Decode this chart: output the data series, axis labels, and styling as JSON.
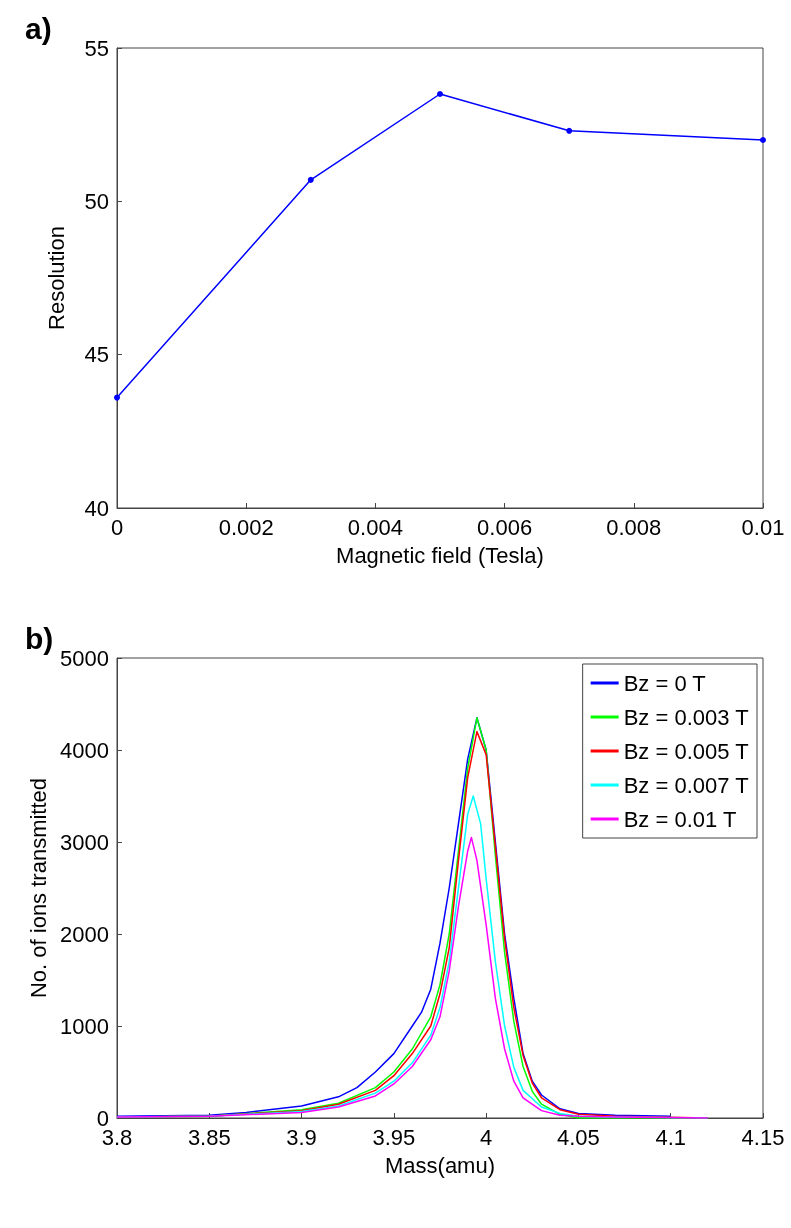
{
  "chart_data": [
    {
      "type": "line",
      "title": "a)",
      "xlabel": "Magnetic field (Tesla)",
      "ylabel": "Resolution",
      "x": [
        0,
        0.003,
        0.005,
        0.007,
        0.01
      ],
      "series": [
        {
          "color": "#0000ff",
          "values": [
            43.6,
            50.7,
            53.5,
            52.3,
            52.0
          ]
        }
      ],
      "xlim": [
        0,
        0.01
      ],
      "xticks": [
        0,
        0.002,
        0.004,
        0.006,
        0.008,
        0.01
      ],
      "ylim": [
        40,
        55
      ],
      "yticks": [
        40,
        45,
        50,
        55
      ],
      "grid": false,
      "marker": "circle",
      "line_style": "solid"
    },
    {
      "type": "line",
      "title": "b)",
      "xlabel": "Mass(amu)",
      "ylabel": "No. of ions transmitted",
      "legend": "top right",
      "grid": false,
      "marker": "none",
      "line_style": "solid",
      "xlim": [
        3.8,
        4.15
      ],
      "xticks": [
        3.8,
        3.85,
        3.9,
        3.95,
        4,
        4.05,
        4.1,
        4.15
      ],
      "ylim": [
        0,
        5000
      ],
      "yticks": [
        0,
        1000,
        2000,
        3000,
        4000,
        5000
      ],
      "series": [
        {
          "name": "Bz = 0 T",
          "color": "#0000ff",
          "x": [
            3.8,
            3.85,
            3.87,
            3.9,
            3.92,
            3.93,
            3.94,
            3.95,
            3.96,
            3.965,
            3.97,
            3.975,
            3.98,
            3.985,
            3.99,
            3.995,
            4.0,
            4.005,
            4.01,
            4.015,
            4.02,
            4.025,
            4.03,
            4.04,
            4.05,
            4.07,
            4.1
          ],
          "values": [
            20,
            30,
            60,
            130,
            230,
            330,
            500,
            700,
            1000,
            1150,
            1400,
            1900,
            2500,
            3200,
            3900,
            4350,
            4000,
            3000,
            2000,
            1300,
            700,
            400,
            250,
            100,
            50,
            30,
            20
          ]
        },
        {
          "name": "Bz = 0.003 T",
          "color": "#00ff00",
          "x": [
            3.8,
            3.85,
            3.9,
            3.92,
            3.94,
            3.95,
            3.96,
            3.97,
            3.975,
            3.98,
            3.985,
            3.99,
            3.995,
            4.0,
            4.005,
            4.01,
            4.015,
            4.02,
            4.025,
            4.03,
            4.04,
            4.05,
            4.07,
            4.11
          ],
          "values": [
            10,
            20,
            90,
            160,
            330,
            500,
            750,
            1100,
            1450,
            2000,
            2900,
            3800,
            4350,
            4000,
            2850,
            1800,
            1050,
            560,
            290,
            150,
            40,
            0,
            0,
            0
          ]
        },
        {
          "name": "Bz = 0.005 T",
          "color": "#ff0000",
          "x": [
            3.8,
            3.85,
            3.9,
            3.92,
            3.94,
            3.95,
            3.96,
            3.97,
            3.975,
            3.98,
            3.985,
            3.99,
            3.995,
            4.0,
            4.005,
            4.01,
            4.015,
            4.02,
            4.025,
            4.03,
            4.04,
            4.05,
            4.07,
            4.12
          ],
          "values": [
            10,
            20,
            80,
            150,
            300,
            460,
            700,
            1000,
            1350,
            1850,
            2800,
            3700,
            4200,
            3950,
            2950,
            1950,
            1200,
            680,
            380,
            220,
            90,
            40,
            20,
            0
          ]
        },
        {
          "name": "Bz = 0.007 T",
          "color": "#00ffff",
          "x": [
            3.8,
            3.85,
            3.9,
            3.92,
            3.94,
            3.95,
            3.96,
            3.97,
            3.975,
            3.98,
            3.985,
            3.99,
            3.993,
            3.997,
            4.0,
            4.005,
            4.01,
            4.015,
            4.02,
            4.03,
            4.04,
            4.05,
            4.07,
            4.12
          ],
          "values": [
            10,
            20,
            70,
            130,
            270,
            400,
            600,
            900,
            1200,
            1700,
            2500,
            3300,
            3500,
            3200,
            2600,
            1700,
            1000,
            550,
            300,
            120,
            50,
            20,
            10,
            0
          ]
        },
        {
          "name": "Bz = 0.01 T",
          "color": "#ff00ff",
          "x": [
            3.8,
            3.85,
            3.9,
            3.92,
            3.94,
            3.95,
            3.96,
            3.97,
            3.975,
            3.98,
            3.985,
            3.99,
            3.992,
            3.995,
            4.0,
            4.005,
            4.01,
            4.015,
            4.02,
            4.03,
            4.04,
            4.05,
            4.07,
            4.12
          ],
          "values": [
            10,
            20,
            60,
            120,
            240,
            370,
            560,
            850,
            1100,
            1600,
            2300,
            2900,
            3050,
            2800,
            2100,
            1300,
            750,
            400,
            220,
            80,
            30,
            20,
            10,
            0
          ]
        }
      ]
    }
  ]
}
